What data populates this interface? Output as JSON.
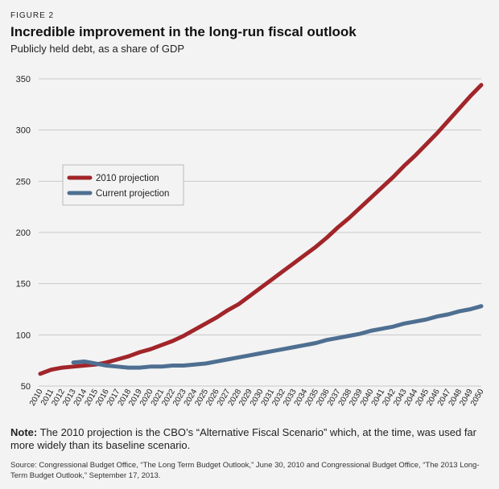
{
  "figure_label": "FIGURE 2",
  "title": "Incredible improvement in the long-run fiscal outlook",
  "subtitle": "Publicly held debt, as a share of GDP",
  "note_label": "Note:",
  "note_text": " The 2010 projection is the CBO’s “Alternative Fiscal Scenario” which, at the time, was used far more widely than its baseline scenario.",
  "source": "Source: Congressional Budget Office, “The Long Term Budget Outlook,” June 30, 2010 and Congressional Budget Office, “The 2013 Long-Term Budget Outlook,” September 17, 2013.",
  "colors": {
    "series_2010": "#a1252a",
    "series_current": "#4e6f91",
    "grid": "#c9c9c9",
    "background": "#f3f3f3"
  },
  "chart_data": {
    "type": "line",
    "title": "Incredible improvement in the long-run fiscal outlook",
    "ylabel": "Publicly held debt, as a share of GDP",
    "xlabel": "",
    "ylim": [
      50,
      350
    ],
    "yticks": [
      50,
      100,
      150,
      200,
      250,
      300,
      350
    ],
    "grid": true,
    "legend_position": "upper-left",
    "x": [
      2010,
      2011,
      2012,
      2013,
      2014,
      2015,
      2016,
      2017,
      2018,
      2019,
      2020,
      2021,
      2022,
      2023,
      2024,
      2025,
      2026,
      2027,
      2028,
      2029,
      2030,
      2031,
      2032,
      2033,
      2034,
      2035,
      2036,
      2037,
      2038,
      2039,
      2040,
      2041,
      2042,
      2043,
      2044,
      2045,
      2046,
      2047,
      2048,
      2049,
      2050
    ],
    "series": [
      {
        "name": "2010 projection",
        "color": "#a1252a",
        "values": [
          62,
          66,
          68,
          69,
          70,
          71,
          73,
          76,
          79,
          83,
          86,
          90,
          94,
          99,
          105,
          111,
          117,
          124,
          130,
          138,
          146,
          154,
          162,
          170,
          178,
          186,
          195,
          205,
          214,
          224,
          234,
          244,
          254,
          265,
          275,
          286,
          297,
          309,
          321,
          333,
          344
        ]
      },
      {
        "name": "Current projection",
        "color": "#4e6f91",
        "values": [
          null,
          null,
          null,
          73,
          74,
          72,
          70,
          69,
          68,
          68,
          69,
          69,
          70,
          70,
          71,
          72,
          74,
          76,
          78,
          80,
          82,
          84,
          86,
          88,
          90,
          92,
          95,
          97,
          99,
          101,
          104,
          106,
          108,
          111,
          113,
          115,
          118,
          120,
          123,
          125,
          128
        ]
      }
    ]
  }
}
